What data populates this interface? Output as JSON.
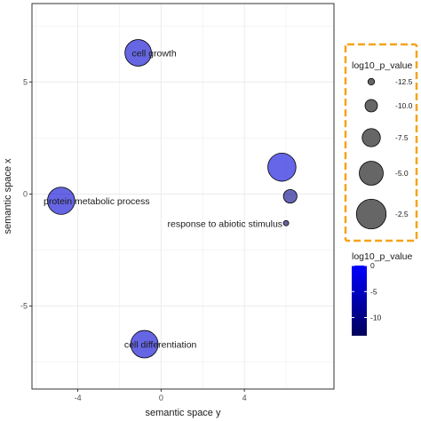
{
  "chart_data": {
    "type": "scatter",
    "xlabel": "semantic space y",
    "ylabel": "semantic space x",
    "xlim": [
      -6.2,
      8.3
    ],
    "ylim": [
      -8.7,
      8.5
    ],
    "x_ticks": [
      -4,
      0,
      4
    ],
    "y_ticks": [
      5,
      0,
      -5
    ],
    "grid": true,
    "points": [
      {
        "label": "cell growth",
        "x": -1.1,
        "y": 6.3,
        "log10_p_value": -3.9
      },
      {
        "label": "protein metabolic process",
        "x": -4.8,
        "y": -0.3,
        "log10_p_value": -3.6
      },
      {
        "label": "",
        "x": 5.8,
        "y": 1.2,
        "log10_p_value": -3.2
      },
      {
        "label": "",
        "x": 6.2,
        "y": -0.1,
        "log10_p_value": -9.5
      },
      {
        "label": "response to abiotic stimulus",
        "x": 6.0,
        "y": -1.3,
        "log10_p_value": -13.5
      },
      {
        "label": "cell differentiation",
        "x": -0.8,
        "y": -6.7,
        "log10_p_value": -3.5
      }
    ],
    "size_legend": {
      "title": "log10_p_value",
      "entries": [
        "-12.5",
        "-10.0",
        "-7.5",
        "-5.0",
        "-2.5"
      ],
      "values": [
        -12.5,
        -10.0,
        -7.5,
        -5.0,
        -2.5
      ],
      "highlight_color": "#f5a31a"
    },
    "color_legend": {
      "title": "log10_p_value",
      "labels": [
        "0",
        "-5",
        "-10"
      ],
      "values": [
        0,
        -5,
        -10
      ],
      "range": [
        -13.5,
        0
      ],
      "low_color": "#00005a",
      "high_color": "#0000ff"
    },
    "colors": {
      "panel_border": "#333333",
      "grid": "#ebebeb",
      "point_fill_alpha": 0.6,
      "size_key_fill": "#666666"
    }
  }
}
